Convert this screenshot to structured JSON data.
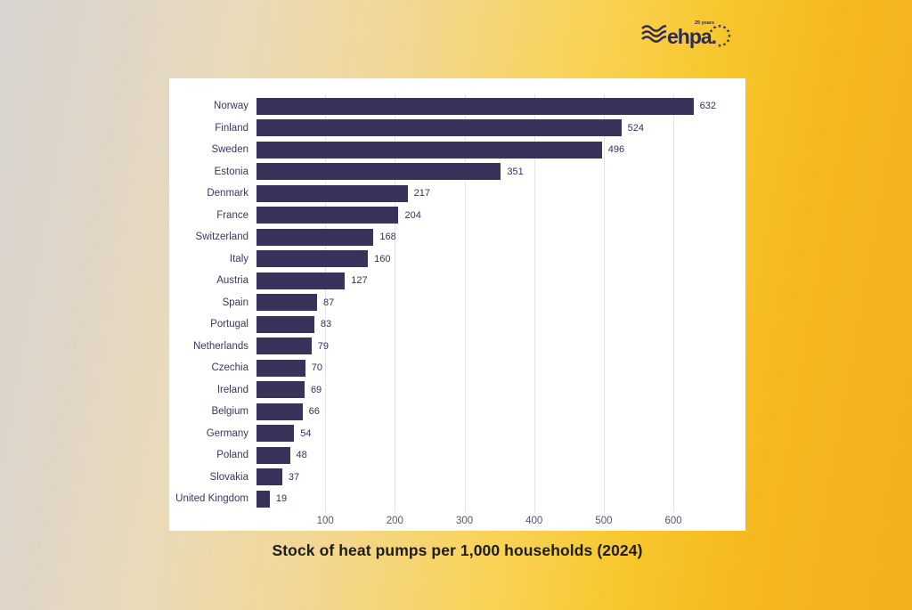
{
  "logo": {
    "name": "ehpa",
    "dot": ".",
    "tagline": "25 years",
    "color": "#2e2a56"
  },
  "caption": "Stock of heat pumps per 1,000 households (2024)",
  "chart_data": {
    "type": "bar",
    "orientation": "horizontal",
    "title": "Stock of heat pumps per 1,000 households (2024)",
    "categories": [
      "Norway",
      "Finland",
      "Sweden",
      "Estonia",
      "Denmark",
      "France",
      "Switzerland",
      "Italy",
      "Austria",
      "Spain",
      "Portugal",
      "Netherlands",
      "Czechia",
      "Ireland",
      "Belgium",
      "Germany",
      "Poland",
      "Slovakia",
      "United Kingdom"
    ],
    "values": [
      632,
      524,
      496,
      351,
      217,
      204,
      168,
      160,
      127,
      87,
      83,
      79,
      70,
      69,
      66,
      54,
      48,
      37,
      19
    ],
    "xticks": [
      100,
      200,
      300,
      400,
      500,
      600
    ],
    "xlim": [
      0,
      660
    ],
    "xlabel": "",
    "ylabel": "",
    "grid": "vertical-only",
    "legend": "none",
    "value_labels": "outside-end",
    "bar_color": "#38335b",
    "gridline_color": "#e3e3ea",
    "label_color": "#3a3660",
    "axis_tick_color": "#55556b",
    "plot_background": "#ffffff"
  },
  "background": {
    "gradient_left": "#d8d4d0",
    "gradient_mid": "#f2d795",
    "gradient_right": "#f2af1f"
  }
}
